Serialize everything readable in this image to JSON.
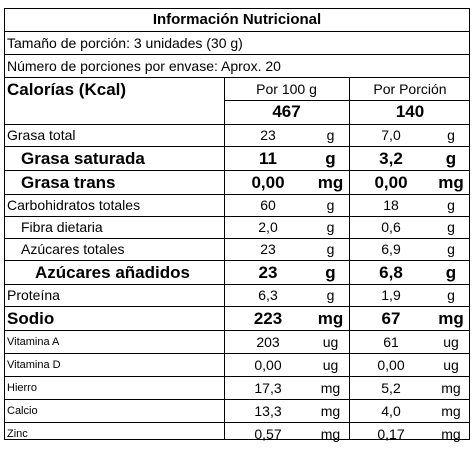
{
  "title": "Información Nutricional",
  "serving_size": "Tamaño de porción: 3 unidades (30 g)",
  "servings_per_container": "Número de porciones por envase: Aprox. 20",
  "calories": {
    "label": "Calorías (Kcal)",
    "per100_header": "Por 100 g",
    "perportion_header": "Por Porción",
    "per100": "467",
    "perportion": "140"
  },
  "rows": [
    {
      "label": "Grasa total",
      "v100": "23",
      "u100": "g",
      "vp": "7,0",
      "up": "g",
      "style": "normal"
    },
    {
      "label": "Grasa saturada",
      "v100": "11",
      "u100": "g",
      "vp": "3,2",
      "up": "g",
      "style": "big"
    },
    {
      "label": "Grasa trans",
      "v100": "0,00",
      "u100": "mg",
      "vp": "0,00",
      "up": "mg",
      "style": "big"
    },
    {
      "label": "Carbohidratos totales",
      "v100": "60",
      "u100": "g",
      "vp": "18",
      "up": "g",
      "style": "normal"
    },
    {
      "label": "Fibra dietaria",
      "v100": "2,0",
      "u100": "g",
      "vp": "0,6",
      "up": "g",
      "style": "indent"
    },
    {
      "label": "Azúcares totales",
      "v100": "23",
      "u100": "g",
      "vp": "6,9",
      "up": "g",
      "style": "indent"
    },
    {
      "label": "Azúcares añadidos",
      "v100": "23",
      "u100": "g",
      "vp": "6,8",
      "up": "g",
      "style": "big-indent"
    },
    {
      "label": "Proteína",
      "v100": "6,3",
      "u100": "g",
      "vp": "1,9",
      "up": "g",
      "style": "normal"
    },
    {
      "label": "Sodio",
      "v100": "223",
      "u100": "mg",
      "vp": "67",
      "up": "mg",
      "style": "big"
    },
    {
      "label": "Vitamina A",
      "v100": "203",
      "u100": "ug",
      "vp": "61",
      "up": "ug",
      "style": "small"
    },
    {
      "label": "Vitamina D",
      "v100": "0,00",
      "u100": "ug",
      "vp": "0,00",
      "up": "ug",
      "style": "small"
    },
    {
      "label": "Hierro",
      "v100": "17,3",
      "u100": "mg",
      "vp": "5,2",
      "up": "mg",
      "style": "small"
    },
    {
      "label": "Calcio",
      "v100": "13,3",
      "u100": "mg",
      "vp": "4,0",
      "up": "mg",
      "style": "small"
    },
    {
      "label": "Zinc",
      "v100": "0,57",
      "u100": "mg",
      "vp": "0,17",
      "up": "mg",
      "style": "small"
    }
  ]
}
